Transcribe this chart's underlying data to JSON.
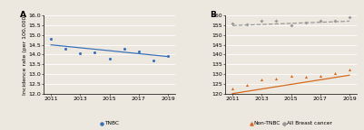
{
  "panel_A": {
    "label": "A",
    "x_data": [
      2011,
      2012,
      2013,
      2014,
      2015,
      2016,
      2017,
      2018,
      2019
    ],
    "y_data": [
      14.8,
      14.3,
      14.05,
      14.1,
      13.78,
      14.3,
      14.15,
      13.68,
      13.95
    ],
    "trend_slope": -0.075,
    "trend_intercept": 14.5,
    "ylim": [
      12,
      16
    ],
    "yticks": [
      12,
      12.5,
      13,
      13.5,
      14,
      14.5,
      15,
      15.5,
      16
    ],
    "xticks": [
      2011,
      2013,
      2015,
      2017,
      2019
    ],
    "ylabel": "Incidence rate (per 100,000)",
    "legend_label": "TNBC",
    "dot_color": "#3A72B8",
    "line_color": "#3A72B8"
  },
  "panel_B": {
    "label": "B",
    "x_data": [
      2011,
      2012,
      2013,
      2014,
      2015,
      2016,
      2017,
      2018,
      2019
    ],
    "nonTNBC_y": [
      122.5,
      124.5,
      127.2,
      127.5,
      129.0,
      128.5,
      129.0,
      130.5,
      132.5
    ],
    "allBC_y": [
      155.8,
      155.5,
      157.2,
      157.3,
      155.2,
      156.5,
      157.2,
      157.5,
      159.0
    ],
    "nonTNBC_trend_slope": 1.18,
    "nonTNBC_trend_intercept": 120.0,
    "allBC_trend_slope": 0.28,
    "allBC_trend_intercept": 154.9,
    "ylim": [
      120,
      160
    ],
    "yticks": [
      120,
      125,
      130,
      135,
      140,
      145,
      150,
      155,
      160
    ],
    "xticks": [
      2011,
      2013,
      2015,
      2017,
      2019
    ],
    "nonTNBC_color": "#D4691E",
    "allBC_color": "#999999",
    "nonTNBC_legend": "Non-TNBC",
    "allBC_legend": "All Breast cancer"
  },
  "background_color": "#EDE8DF",
  "fontsize_tick": 4.5,
  "fontsize_label": 4.5,
  "fontsize_panel": 6.5,
  "fontsize_legend": 4.2
}
